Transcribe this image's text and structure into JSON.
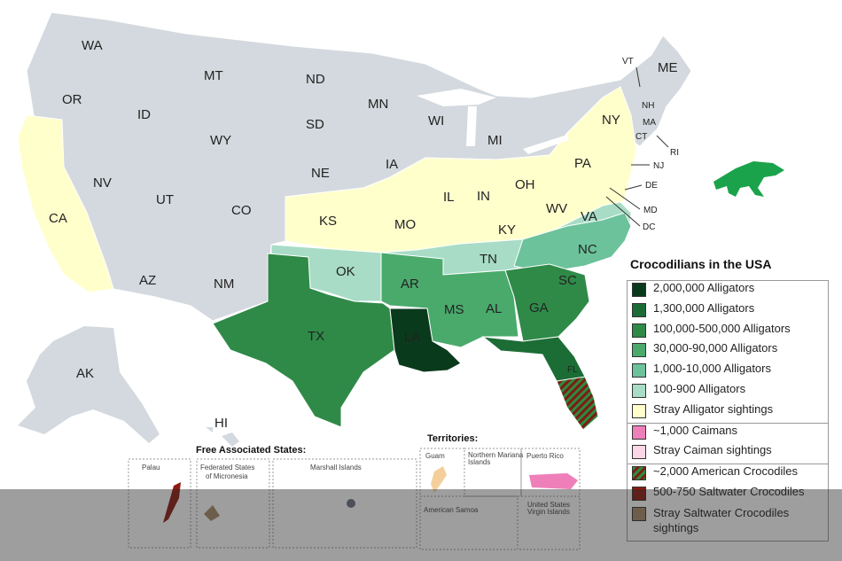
{
  "legend": {
    "title": "Crocodilians in the USA",
    "items": [
      {
        "label": "2,000,000 Alligators",
        "color": "#0a3a1c"
      },
      {
        "label": "1,300,000 Alligators",
        "color": "#1b6d35"
      },
      {
        "label": "100,000-500,000 Alligators",
        "color": "#2f8a48"
      },
      {
        "label": "30,000-90,000 Alligators",
        "color": "#4aaa6c"
      },
      {
        "label": "1,000-10,000 Alligators",
        "color": "#6cc29a"
      },
      {
        "label": "100-900 Alligators",
        "color": "#a8dcc7"
      },
      {
        "label": "Stray Alligator sightings",
        "color": "#ffffcc"
      },
      {
        "label": "~1,000 Caimans",
        "color": "#ef7fb9"
      },
      {
        "label": "Stray Caiman sightings",
        "color": "#fbd6e6"
      },
      {
        "label": "~2,000 American Crocodiles",
        "color": "hatch"
      },
      {
        "label": "500-750 Saltwater Crocodiles",
        "color": "#8b1a12"
      },
      {
        "label": "Stray Saltwater Crocodiles sightings",
        "color": "#a78b6a"
      }
    ]
  },
  "states": {
    "WA": "WA",
    "OR": "OR",
    "CA": "CA",
    "ID": "ID",
    "NV": "NV",
    "MT": "MT",
    "WY": "WY",
    "UT": "UT",
    "AZ": "AZ",
    "CO": "CO",
    "NM": "NM",
    "ND": "ND",
    "SD": "SD",
    "NE": "NE",
    "KS": "KS",
    "OK": "OK",
    "TX": "TX",
    "MN": "MN",
    "IA": "IA",
    "MO": "MO",
    "AR": "AR",
    "LA": "LA",
    "WI": "WI",
    "IL": "IL",
    "MI": "MI",
    "IN": "IN",
    "OH": "OH",
    "KY": "KY",
    "TN": "TN",
    "MS": "MS",
    "AL": "AL",
    "GA": "GA",
    "FL": "FL",
    "SC": "SC",
    "NC": "NC",
    "VA": "VA",
    "WV": "WV",
    "PA": "PA",
    "NY": "NY",
    "VT": "VT",
    "ME": "ME",
    "NH": "NH",
    "MA": "MA",
    "CT": "CT",
    "RI": "RI",
    "NJ": "NJ",
    "DE": "DE",
    "MD": "MD",
    "DC": "DC",
    "AK": "AK",
    "HI": "HI"
  },
  "insets": {
    "free_associated_title": "Free Associated States:",
    "palau": "Palau",
    "micronesia_1": "Federated States",
    "micronesia_2": "of Micronesia",
    "marshall": "Marshall Islands",
    "territories_title": "Territories:",
    "guam": "Guam",
    "nmi_1": "Northern Mariana",
    "nmi_2": "Islands",
    "puerto_rico": "Puerto Rico",
    "samoa": "American Samoa",
    "usvi_1": "United States",
    "usvi_2": "Virgin Islands"
  },
  "colors": {
    "none": "#d3d9de",
    "stray": "#ffffcc",
    "c100_900": "#a8dcc7",
    "c1000_10000": "#6cc29a",
    "c30000_90000": "#4aaa6c",
    "c100000_500000": "#2f8a48",
    "c1300000": "#1b6d35",
    "c2000000": "#0a3a1c",
    "croc_icon": "#1aa34a"
  }
}
